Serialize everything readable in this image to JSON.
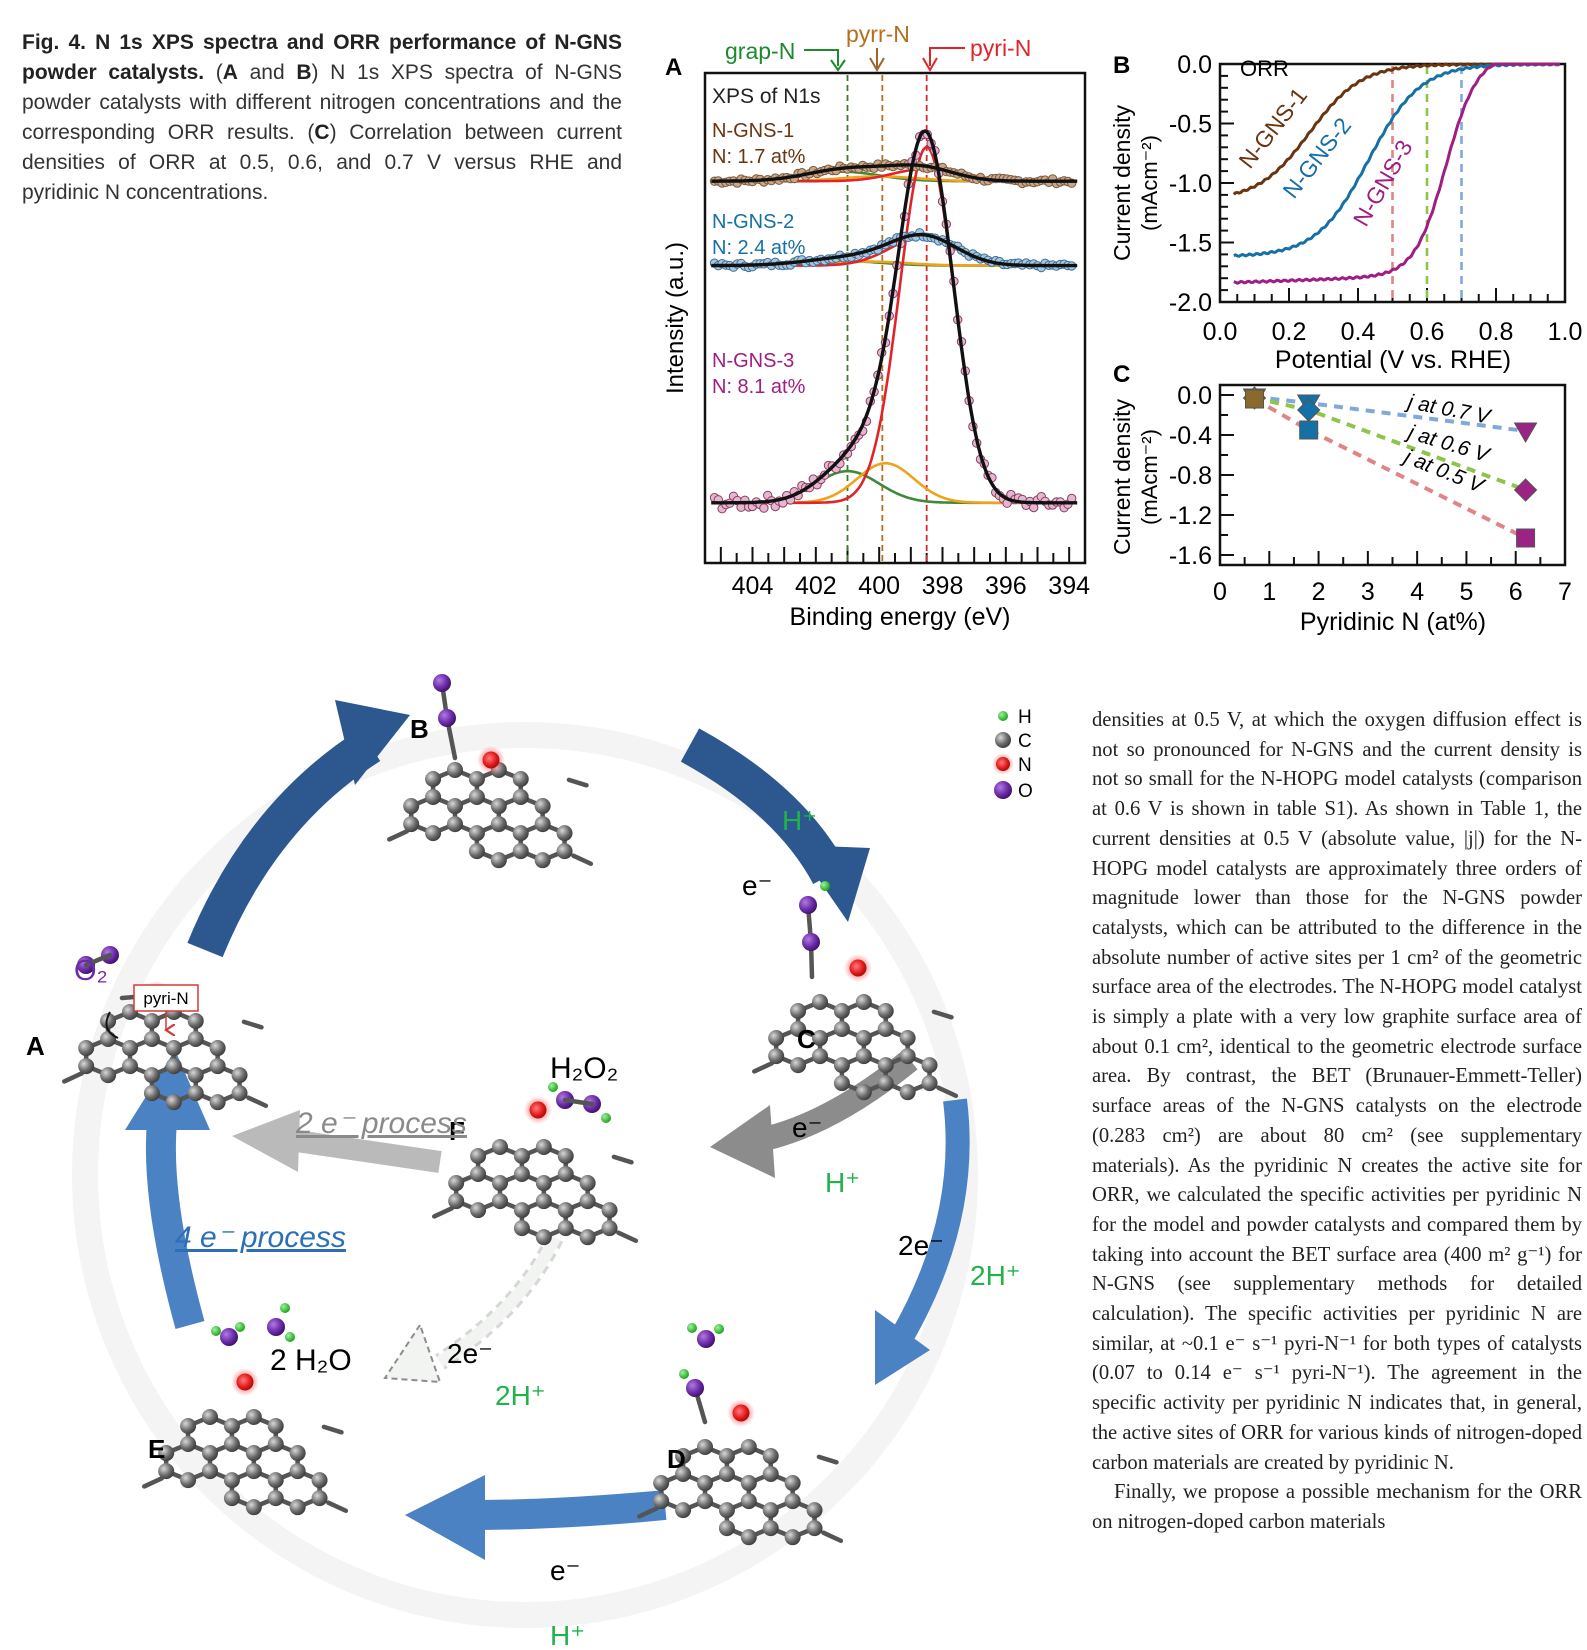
{
  "caption": {
    "figure_label": "Fig. 4.",
    "title": "N 1s XPS spectra and ORR performance of N-GNS powder catalysts.",
    "sentence_1_open": "(",
    "panel_A": "A",
    "and_word": " and ",
    "panel_B": "B",
    "sentence_1_rest": ") N 1s XPS spectra of N-GNS powder catalysts with different nitrogen concentrations and the corresponding ORR results. (",
    "panel_C": "C",
    "sentence_2_rest": ") Correlation between current densities of ORR at 0.5, 0.6, and 0.7 V versus RHE and pyridinic N concentrations."
  },
  "body_text": {
    "paragraph_1": "densities at 0.5 V, at which the oxygen diffusion effect is not so pronounced for N-GNS and the current density is not so small for the N-HOPG model catalysts (comparison at 0.6 V is shown in table S1). As shown in Table 1, the current densities at 0.5 V (absolute value, |j|) for the N-HOPG model catalysts are approximately three orders of magnitude lower than those for the N-GNS powder catalysts, which can be attributed to the difference in the absolute number of active sites per 1 cm² of the geometric surface area of the electrodes. The N-HOPG model catalyst is simply a plate with a very low graphite surface area of about 0.1 cm², identical to the geometric electrode surface area. By contrast, the BET (Brunauer-Emmett-Teller) surface areas of the N-GNS catalysts on the electrode (0.283 cm²) are about 80 cm² (see supplementary materials). As the pyridinic N creates the active site for ORR, we calculated the specific activities per pyridinic N for the model and powder catalysts and compared them by taking into account the BET surface area (400 m² g⁻¹) for N-GNS (see supplementary methods for detailed calculation). The specific activities per pyridinic N are similar, at ~0.1 e⁻ s⁻¹ pyri-N⁻¹ for both types of catalysts (0.07 to 0.14 e⁻ s⁻¹ pyri-N⁻¹). The agreement in the specific activity per pyridinic N indicates that, in general, the active sites of ORR for various kinds of nitrogen-doped carbon materials are created by pyridinic N.",
    "paragraph_2": "Finally, we propose a possible mechanism for the ORR on nitrogen-doped carbon materials"
  },
  "panel_a": {
    "label": "A",
    "inner_title": "XPS of N1s",
    "marker_grap": "grap-N",
    "marker_pyrr": "pyrr-N",
    "marker_pyri": "pyri-N",
    "sample1_name": "N-GNS-1",
    "sample1_n": "N: 1.7 at%",
    "sample2_name": "N-GNS-2",
    "sample2_n": "N: 2.4 at%",
    "sample3_name": "N-GNS-3",
    "sample3_n": "N: 8.1 at%",
    "ylabel": "Intensity (a.u.)",
    "xlabel": "Binding energy (eV)",
    "xticks": [
      "404",
      "402",
      "400",
      "398",
      "396",
      "394"
    ]
  },
  "panel_b": {
    "label": "B",
    "legend": "ORR",
    "curve1": "N-GNS-1",
    "curve2": "N-GNS-2",
    "curve3": "N-GNS-3",
    "ylabel_1": "Current density",
    "ylabel_2": "(mAcm⁻²)",
    "xlabel": "Potential (V vs. RHE)",
    "yticks": [
      "0.0",
      "-0.5",
      "-1.0",
      "-1.5",
      "-2.0"
    ],
    "xticks": [
      "0.0",
      "0.2",
      "0.4",
      "0.6",
      "0.8",
      "1.0"
    ]
  },
  "panel_c": {
    "label": "C",
    "ylabel_1": "Current density",
    "ylabel_2": "(mAcm⁻²)",
    "xlabel": "Pyridinic N (at%)",
    "yticks": [
      "0.0",
      "-0.4",
      "-0.8",
      "-1.2",
      "-1.6"
    ],
    "xticks": [
      "0",
      "1",
      "2",
      "3",
      "4",
      "5",
      "6",
      "7"
    ],
    "ann_07": "j at 0.7 V",
    "ann_06": "j at 0.6 V",
    "ann_05": "j at 0.5 V"
  },
  "mechanism": {
    "state_A": "A",
    "state_B": "B",
    "state_C": "C",
    "state_D": "D",
    "state_E": "E",
    "state_F": "F",
    "o2": "O₂",
    "pyri_tag": "pyri-N",
    "h2o2": "H₂O₂",
    "water": "2 H₂O",
    "two_e_process": "2 e⁻ process",
    "four_e_process": "4 e⁻ process",
    "h_plus": "H⁺",
    "e_minus": "e⁻",
    "two_e": "2e⁻",
    "two_h_plus": "2H⁺",
    "legend_h": "H",
    "legend_c": "C",
    "legend_n": "N",
    "legend_o": "O"
  },
  "chart_data": [
    {
      "type": "line",
      "title": "XPS of N1s",
      "xlabel": "Binding energy (eV)",
      "ylabel": "Intensity (a.u.)",
      "xlim": [
        405.5,
        393.5
      ],
      "x_reversed": true,
      "peak_positions_eV": {
        "grap-N": 401.0,
        "pyrr-N": 399.9,
        "pyri-N": 398.5
      },
      "series": [
        {
          "name": "N-GNS-1",
          "n_content": "N: 1.7 at%",
          "x": [
            405,
            403,
            401,
            400,
            399,
            398.5,
            398,
            397,
            396,
            394
          ],
          "values": [
            0.03,
            0.05,
            0.12,
            0.13,
            0.12,
            0.11,
            0.09,
            0.05,
            0.03,
            0.03
          ]
        },
        {
          "name": "N-GNS-2",
          "n_content": "N: 2.4 at%",
          "x": [
            405,
            403,
            401,
            400,
            399,
            398.5,
            398,
            397,
            396,
            394
          ],
          "values": [
            0.02,
            0.04,
            0.08,
            0.12,
            0.2,
            0.24,
            0.2,
            0.09,
            0.04,
            0.02
          ]
        },
        {
          "name": "N-GNS-3",
          "n_content": "N: 8.1 at%",
          "x": [
            405,
            403,
            402,
            401,
            400,
            399.5,
            399,
            398.5,
            398,
            397.5,
            397,
            396,
            394
          ],
          "values": [
            0.05,
            0.08,
            0.15,
            0.28,
            0.45,
            0.7,
            1.2,
            1.45,
            1.2,
            0.7,
            0.3,
            0.06,
            0.03
          ]
        }
      ],
      "color_grap": "#1d8a2e",
      "color_pyrr": "#a0642a",
      "color_pyri": "#e0252a"
    },
    {
      "type": "line",
      "legend": "ORR",
      "xlabel": "Potential (V vs. RHE)",
      "ylabel": "Current density (mAcm⁻²)",
      "xlim": [
        0.0,
        1.0
      ],
      "ylim": [
        -2.0,
        0.0
      ],
      "vertical_markers_V": [
        0.5,
        0.6,
        0.7
      ],
      "x": [
        0.05,
        0.1,
        0.2,
        0.3,
        0.4,
        0.5,
        0.6,
        0.7,
        0.8,
        0.9,
        1.0
      ],
      "series": [
        {
          "name": "N-GNS-1",
          "color": "#6b3410",
          "values": [
            -1.08,
            -1.0,
            -0.78,
            -0.48,
            -0.24,
            -0.1,
            -0.04,
            -0.02,
            -0.01,
            0.0,
            0.0
          ]
        },
        {
          "name": "N-GNS-2",
          "color": "#1570a6",
          "values": [
            -1.55,
            -1.48,
            -1.33,
            -1.12,
            -0.82,
            -0.5,
            -0.22,
            -0.07,
            -0.02,
            -0.01,
            0.0
          ]
        },
        {
          "name": "N-GNS-3",
          "color": "#a01d82",
          "values": [
            -1.82,
            -1.82,
            -1.79,
            -1.73,
            -1.6,
            -1.42,
            -1.0,
            -0.38,
            -0.05,
            -0.01,
            0.0
          ]
        }
      ],
      "marker_colors": [
        "#e08585",
        "#8fc44a",
        "#7fa8dd"
      ]
    },
    {
      "type": "scatter",
      "xlabel": "Pyridinic N (at%)",
      "ylabel": "Current density (mAcm⁻²)",
      "xlim": [
        0,
        7
      ],
      "ylim": [
        -1.7,
        0.1
      ],
      "x": [
        0.7,
        1.8,
        6.2
      ],
      "series": [
        {
          "name": "j at 0.7 V",
          "marker": "triangle-down",
          "color": "#7fa8dd",
          "values": [
            -0.02,
            -0.08,
            -0.36
          ]
        },
        {
          "name": "j at 0.6 V",
          "marker": "diamond",
          "color": "#8fc44a",
          "values": [
            -0.03,
            -0.15,
            -0.95
          ]
        },
        {
          "name": "j at 0.5 V",
          "marker": "square",
          "color": "#e08585",
          "values": [
            -0.04,
            -0.35,
            -1.43
          ]
        }
      ],
      "point_colors": [
        "#8a6a2a",
        "#1570a6",
        "#9b2384"
      ]
    }
  ]
}
